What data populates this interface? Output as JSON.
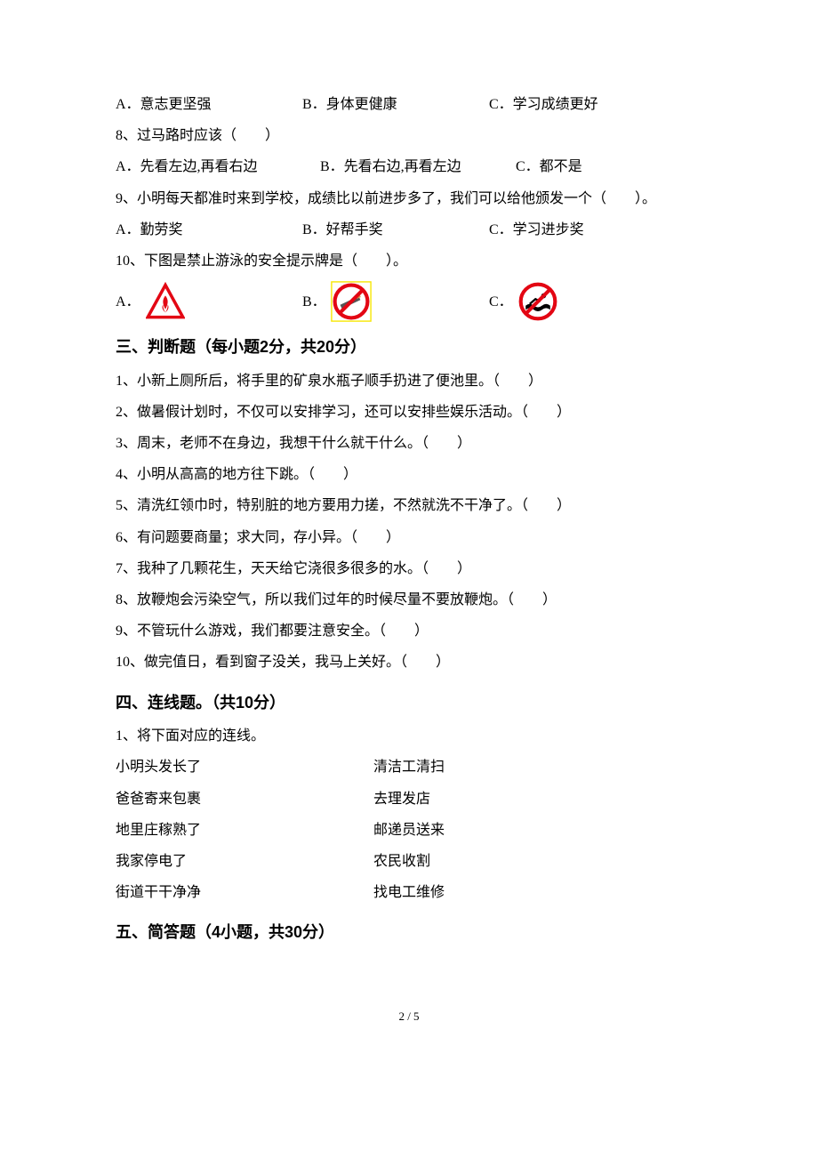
{
  "mc": {
    "q7_opts": {
      "a": "A．意志更坚强",
      "b": "B．身体更健康",
      "c": "C．学习成绩更好"
    },
    "q8": {
      "stem": "8、过马路时应该（　　）",
      "a": "A．先看左边,再看右边",
      "b": "B．先看右边,再看左边",
      "c": "C．都不是"
    },
    "q9": {
      "stem": "9、小明每天都准时来到学校，成绩比以前进步多了，我们可以给他颁发一个（　　）。",
      "a": "A．勤劳奖",
      "b": "B．好帮手奖",
      "c": "C．学习进步奖"
    },
    "q10": {
      "stem": "10、下图是禁止游泳的安全提示牌是（　　）。",
      "a_label": "A．",
      "b_label": "B．",
      "c_label": "C．"
    }
  },
  "section3": {
    "heading": "三、判断题（每小题2分，共20分）",
    "items": [
      "1、小新上厕所后，将手里的矿泉水瓶子顺手扔进了便池里。（　　）",
      "2、做暑假计划时，不仅可以安排学习，还可以安排些娱乐活动。（　　）",
      "3、周末，老师不在身边，我想干什么就干什么。（　　）",
      "4、小明从高高的地方往下跳。（　　）",
      "5、清洗红领巾时，特别脏的地方要用力搓，不然就洗不干净了。（　　）",
      "6、有问题要商量；求大同，存小异。（　　）",
      "7、我种了几颗花生，天天给它浇很多很多的水。（　　）",
      "8、放鞭炮会污染空气，所以我们过年的时候尽量不要放鞭炮。（　　）",
      "9、不管玩什么游戏，我们都要注意安全。（　　）",
      "10、做完值日，看到窗子没关，我马上关好。（　　）"
    ]
  },
  "section4": {
    "heading": "四、连线题。（共10分）",
    "intro": "1、将下面对应的连线。",
    "pairs": [
      {
        "left": "小明头发长了",
        "right": "清洁工清扫"
      },
      {
        "left": "爸爸寄来包裹",
        "right": "去理发店"
      },
      {
        "left": "地里庄稼熟了",
        "right": "邮递员送来"
      },
      {
        "left": "我家停电了",
        "right": "农民收割"
      },
      {
        "left": "街道干干净净",
        "right": "找电工维修"
      }
    ]
  },
  "section5": {
    "heading": "五、简答题（4小题，共30分）"
  },
  "footer": "2 / 5",
  "icons": {
    "fire_triangle": {
      "border_color": "#e30613",
      "flame_color": "#e30613"
    },
    "no_smoking": {
      "ring_color": "#e30613",
      "border_box": "#f7e600"
    },
    "no_swimming": {
      "ring_color": "#e30613",
      "figure_color": "#000000"
    }
  }
}
